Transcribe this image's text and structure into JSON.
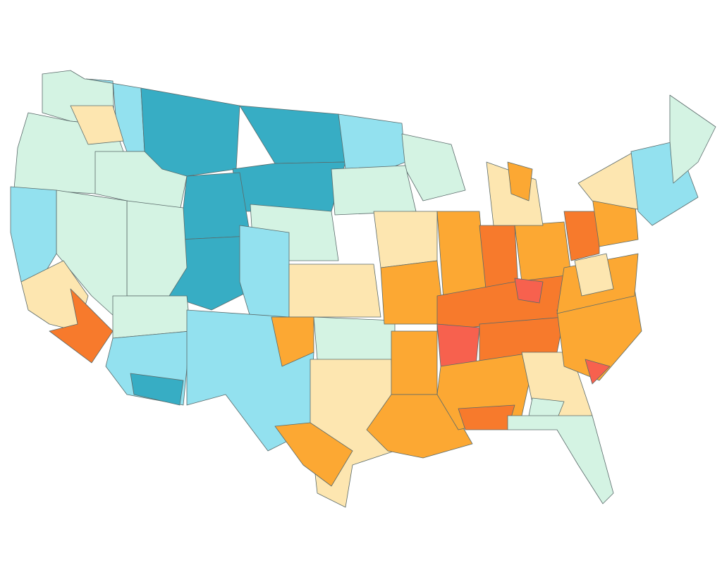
{
  "map": {
    "colors": [
      "#d4f3e3",
      "#93e1ef",
      "#37adc4",
      "#fde6b0",
      "#fca833",
      "#f77a2c",
      "#f7614e"
    ]
  }
}
